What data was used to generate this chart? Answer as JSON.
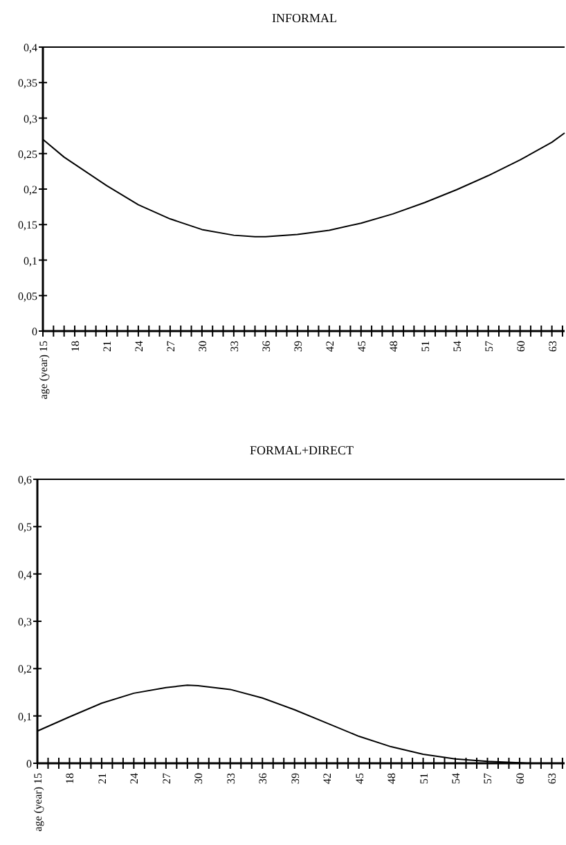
{
  "chart_data": [
    {
      "type": "line",
      "title": "INFORMAL",
      "xlim": [
        15,
        64.2
      ],
      "xticks": [
        {
          "value": 15,
          "label": "age (year) 15"
        },
        {
          "value": 16,
          "label": null
        },
        {
          "value": 17,
          "label": null
        },
        18,
        {
          "value": 19,
          "label": null
        },
        {
          "value": 20,
          "label": null
        },
        21,
        {
          "value": 22,
          "label": null
        },
        {
          "value": 23,
          "label": null
        },
        24,
        {
          "value": 25,
          "label": null
        },
        {
          "value": 26,
          "label": null
        },
        27,
        {
          "value": 28,
          "label": null
        },
        {
          "value": 29,
          "label": null
        },
        30,
        {
          "value": 31,
          "label": null
        },
        {
          "value": 32,
          "label": null
        },
        33,
        {
          "value": 34,
          "label": null
        },
        {
          "value": 35,
          "label": null
        },
        36,
        {
          "value": 37,
          "label": null
        },
        {
          "value": 38,
          "label": null
        },
        39,
        {
          "value": 40,
          "label": null
        },
        {
          "value": 41,
          "label": null
        },
        42,
        {
          "value": 43,
          "label": null
        },
        {
          "value": 44,
          "label": null
        },
        45,
        {
          "value": 46,
          "label": null
        },
        {
          "value": 47,
          "label": null
        },
        48,
        {
          "value": 49,
          "label": null
        },
        {
          "value": 50,
          "label": null
        },
        51,
        {
          "value": 52,
          "label": null
        },
        {
          "value": 53,
          "label": null
        },
        54,
        {
          "value": 55,
          "label": null
        },
        {
          "value": 56,
          "label": null
        },
        57,
        {
          "value": 58,
          "label": null
        },
        {
          "value": 59,
          "label": null
        },
        60,
        {
          "value": 61,
          "label": null
        },
        {
          "value": 62,
          "label": null
        },
        63,
        {
          "value": 64,
          "label": null
        }
      ],
      "ylim": [
        0,
        0.4
      ],
      "yticks": [
        0,
        {
          "value": 0.05,
          "label": "0,05"
        },
        {
          "value": 0.1,
          "label": "0,1"
        },
        {
          "value": 0.15,
          "label": "0,15"
        },
        {
          "value": 0.2,
          "label": "0,2"
        },
        {
          "value": 0.25,
          "label": "0,25"
        },
        {
          "value": 0.3,
          "label": "0,3"
        },
        {
          "value": 0.35,
          "label": "0,35"
        },
        {
          "value": 0.4,
          "label": "0,4"
        }
      ],
      "grid": false,
      "marker": "none",
      "line_style": "solid",
      "series": [
        {
          "color": "#000000",
          "x": [
            15,
            17,
            18,
            21,
            24,
            27,
            30,
            33,
            35,
            36,
            39,
            42,
            45,
            48,
            51,
            54,
            57,
            60,
            63,
            64.2
          ],
          "values": [
            0.27,
            0.245,
            0.235,
            0.205,
            0.178,
            0.158,
            0.143,
            0.135,
            0.133,
            0.133,
            0.136,
            0.142,
            0.152,
            0.165,
            0.181,
            0.199,
            0.219,
            0.241,
            0.266,
            0.279
          ]
        }
      ]
    },
    {
      "type": "line",
      "title": "FORMAL+DIRECT",
      "xlim": [
        15,
        64.2
      ],
      "xticks": [
        {
          "value": 15,
          "label": "age (year) 15"
        },
        {
          "value": 16,
          "label": null
        },
        {
          "value": 17,
          "label": null
        },
        18,
        {
          "value": 19,
          "label": null
        },
        {
          "value": 20,
          "label": null
        },
        21,
        {
          "value": 22,
          "label": null
        },
        {
          "value": 23,
          "label": null
        },
        24,
        {
          "value": 25,
          "label": null
        },
        {
          "value": 26,
          "label": null
        },
        27,
        {
          "value": 28,
          "label": null
        },
        {
          "value": 29,
          "label": null
        },
        30,
        {
          "value": 31,
          "label": null
        },
        {
          "value": 32,
          "label": null
        },
        33,
        {
          "value": 34,
          "label": null
        },
        {
          "value": 35,
          "label": null
        },
        36,
        {
          "value": 37,
          "label": null
        },
        {
          "value": 38,
          "label": null
        },
        39,
        {
          "value": 40,
          "label": null
        },
        {
          "value": 41,
          "label": null
        },
        42,
        {
          "value": 43,
          "label": null
        },
        {
          "value": 44,
          "label": null
        },
        45,
        {
          "value": 46,
          "label": null
        },
        {
          "value": 47,
          "label": null
        },
        48,
        {
          "value": 49,
          "label": null
        },
        {
          "value": 50,
          "label": null
        },
        51,
        {
          "value": 52,
          "label": null
        },
        {
          "value": 53,
          "label": null
        },
        54,
        {
          "value": 55,
          "label": null
        },
        {
          "value": 56,
          "label": null
        },
        57,
        {
          "value": 58,
          "label": null
        },
        {
          "value": 59,
          "label": null
        },
        60,
        {
          "value": 61,
          "label": null
        },
        {
          "value": 62,
          "label": null
        },
        63,
        {
          "value": 64,
          "label": null
        }
      ],
      "ylim": [
        0,
        0.6
      ],
      "yticks": [
        0,
        {
          "value": 0.1,
          "label": "0,1"
        },
        {
          "value": 0.2,
          "label": "0,2"
        },
        {
          "value": 0.3,
          "label": "0,3"
        },
        {
          "value": 0.4,
          "label": "0,4"
        },
        {
          "value": 0.5,
          "label": "0,5"
        },
        {
          "value": 0.6,
          "label": "0,6"
        }
      ],
      "grid": false,
      "marker": "none",
      "line_style": "solid",
      "series": [
        {
          "color": "#000000",
          "x": [
            15,
            18,
            21,
            24,
            27,
            29,
            30,
            33,
            36,
            39,
            42,
            45,
            48,
            51,
            54,
            57,
            60,
            61
          ],
          "values": [
            0.068,
            0.098,
            0.127,
            0.148,
            0.16,
            0.165,
            0.164,
            0.156,
            0.138,
            0.113,
            0.085,
            0.057,
            0.035,
            0.019,
            0.009,
            0.004,
            0.001,
            0
          ]
        }
      ]
    }
  ]
}
